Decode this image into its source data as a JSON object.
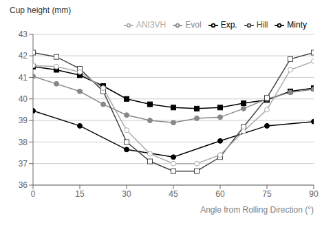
{
  "chart_data": {
    "type": "line",
    "xlabel": "Angle from Rolling Direction (°)",
    "ylabel": "Cup height (mm)",
    "xlim": [
      0,
      90
    ],
    "xticks": [
      0,
      15,
      30,
      45,
      60,
      75,
      90
    ],
    "ylim": [
      36,
      43
    ],
    "yticks": [
      36,
      37,
      38,
      39,
      40,
      41,
      42,
      43
    ],
    "grid": true,
    "legend": "top",
    "series": [
      {
        "name": "Exp.",
        "color": "#000000",
        "marker": "circle",
        "x": [
          0,
          15,
          30,
          45,
          60,
          75,
          90
        ],
        "values": [
          39.45,
          38.75,
          37.65,
          37.3,
          38.05,
          38.75,
          38.95
        ]
      },
      {
        "name": "Minty",
        "color": "#000000",
        "marker": "square",
        "x": [
          0,
          7.5,
          15,
          22.5,
          30,
          37.5,
          45,
          52.5,
          60,
          67.5,
          75,
          82.5,
          90
        ],
        "values": [
          41.5,
          41.35,
          41.1,
          40.6,
          40.0,
          39.75,
          39.6,
          39.55,
          39.6,
          39.8,
          39.95,
          40.35,
          40.5
        ]
      },
      {
        "name": "Evol",
        "color": "#888888",
        "marker": "circle",
        "x": [
          0,
          7.5,
          15,
          22.5,
          30,
          37.5,
          45,
          52.5,
          60,
          67.5,
          75,
          82.5,
          90
        ],
        "values": [
          41.05,
          40.7,
          40.35,
          39.75,
          39.25,
          39.0,
          38.9,
          39.1,
          39.15,
          39.55,
          40.0,
          40.3,
          40.45
        ]
      },
      {
        "name": "Hill",
        "color": "#444444",
        "marker": "open-square",
        "x": [
          0,
          7.5,
          15,
          22.5,
          30,
          37.5,
          45,
          52.5,
          60,
          67.5,
          75,
          82.5,
          90
        ],
        "values": [
          42.15,
          41.95,
          41.4,
          40.35,
          38.0,
          37.1,
          36.65,
          36.65,
          37.3,
          38.7,
          40.05,
          41.85,
          42.15
        ]
      },
      {
        "name": "ANI3VH",
        "color": "#aaaaaa",
        "marker": "open-circle",
        "x": [
          0,
          7.5,
          15,
          22.5,
          30,
          37.5,
          45,
          52.5,
          60,
          67.5,
          75,
          82.5,
          90
        ],
        "values": [
          41.55,
          41.5,
          41.25,
          40.5,
          38.55,
          37.45,
          37.0,
          37.0,
          37.4,
          38.5,
          39.5,
          41.35,
          41.75
        ]
      }
    ]
  }
}
